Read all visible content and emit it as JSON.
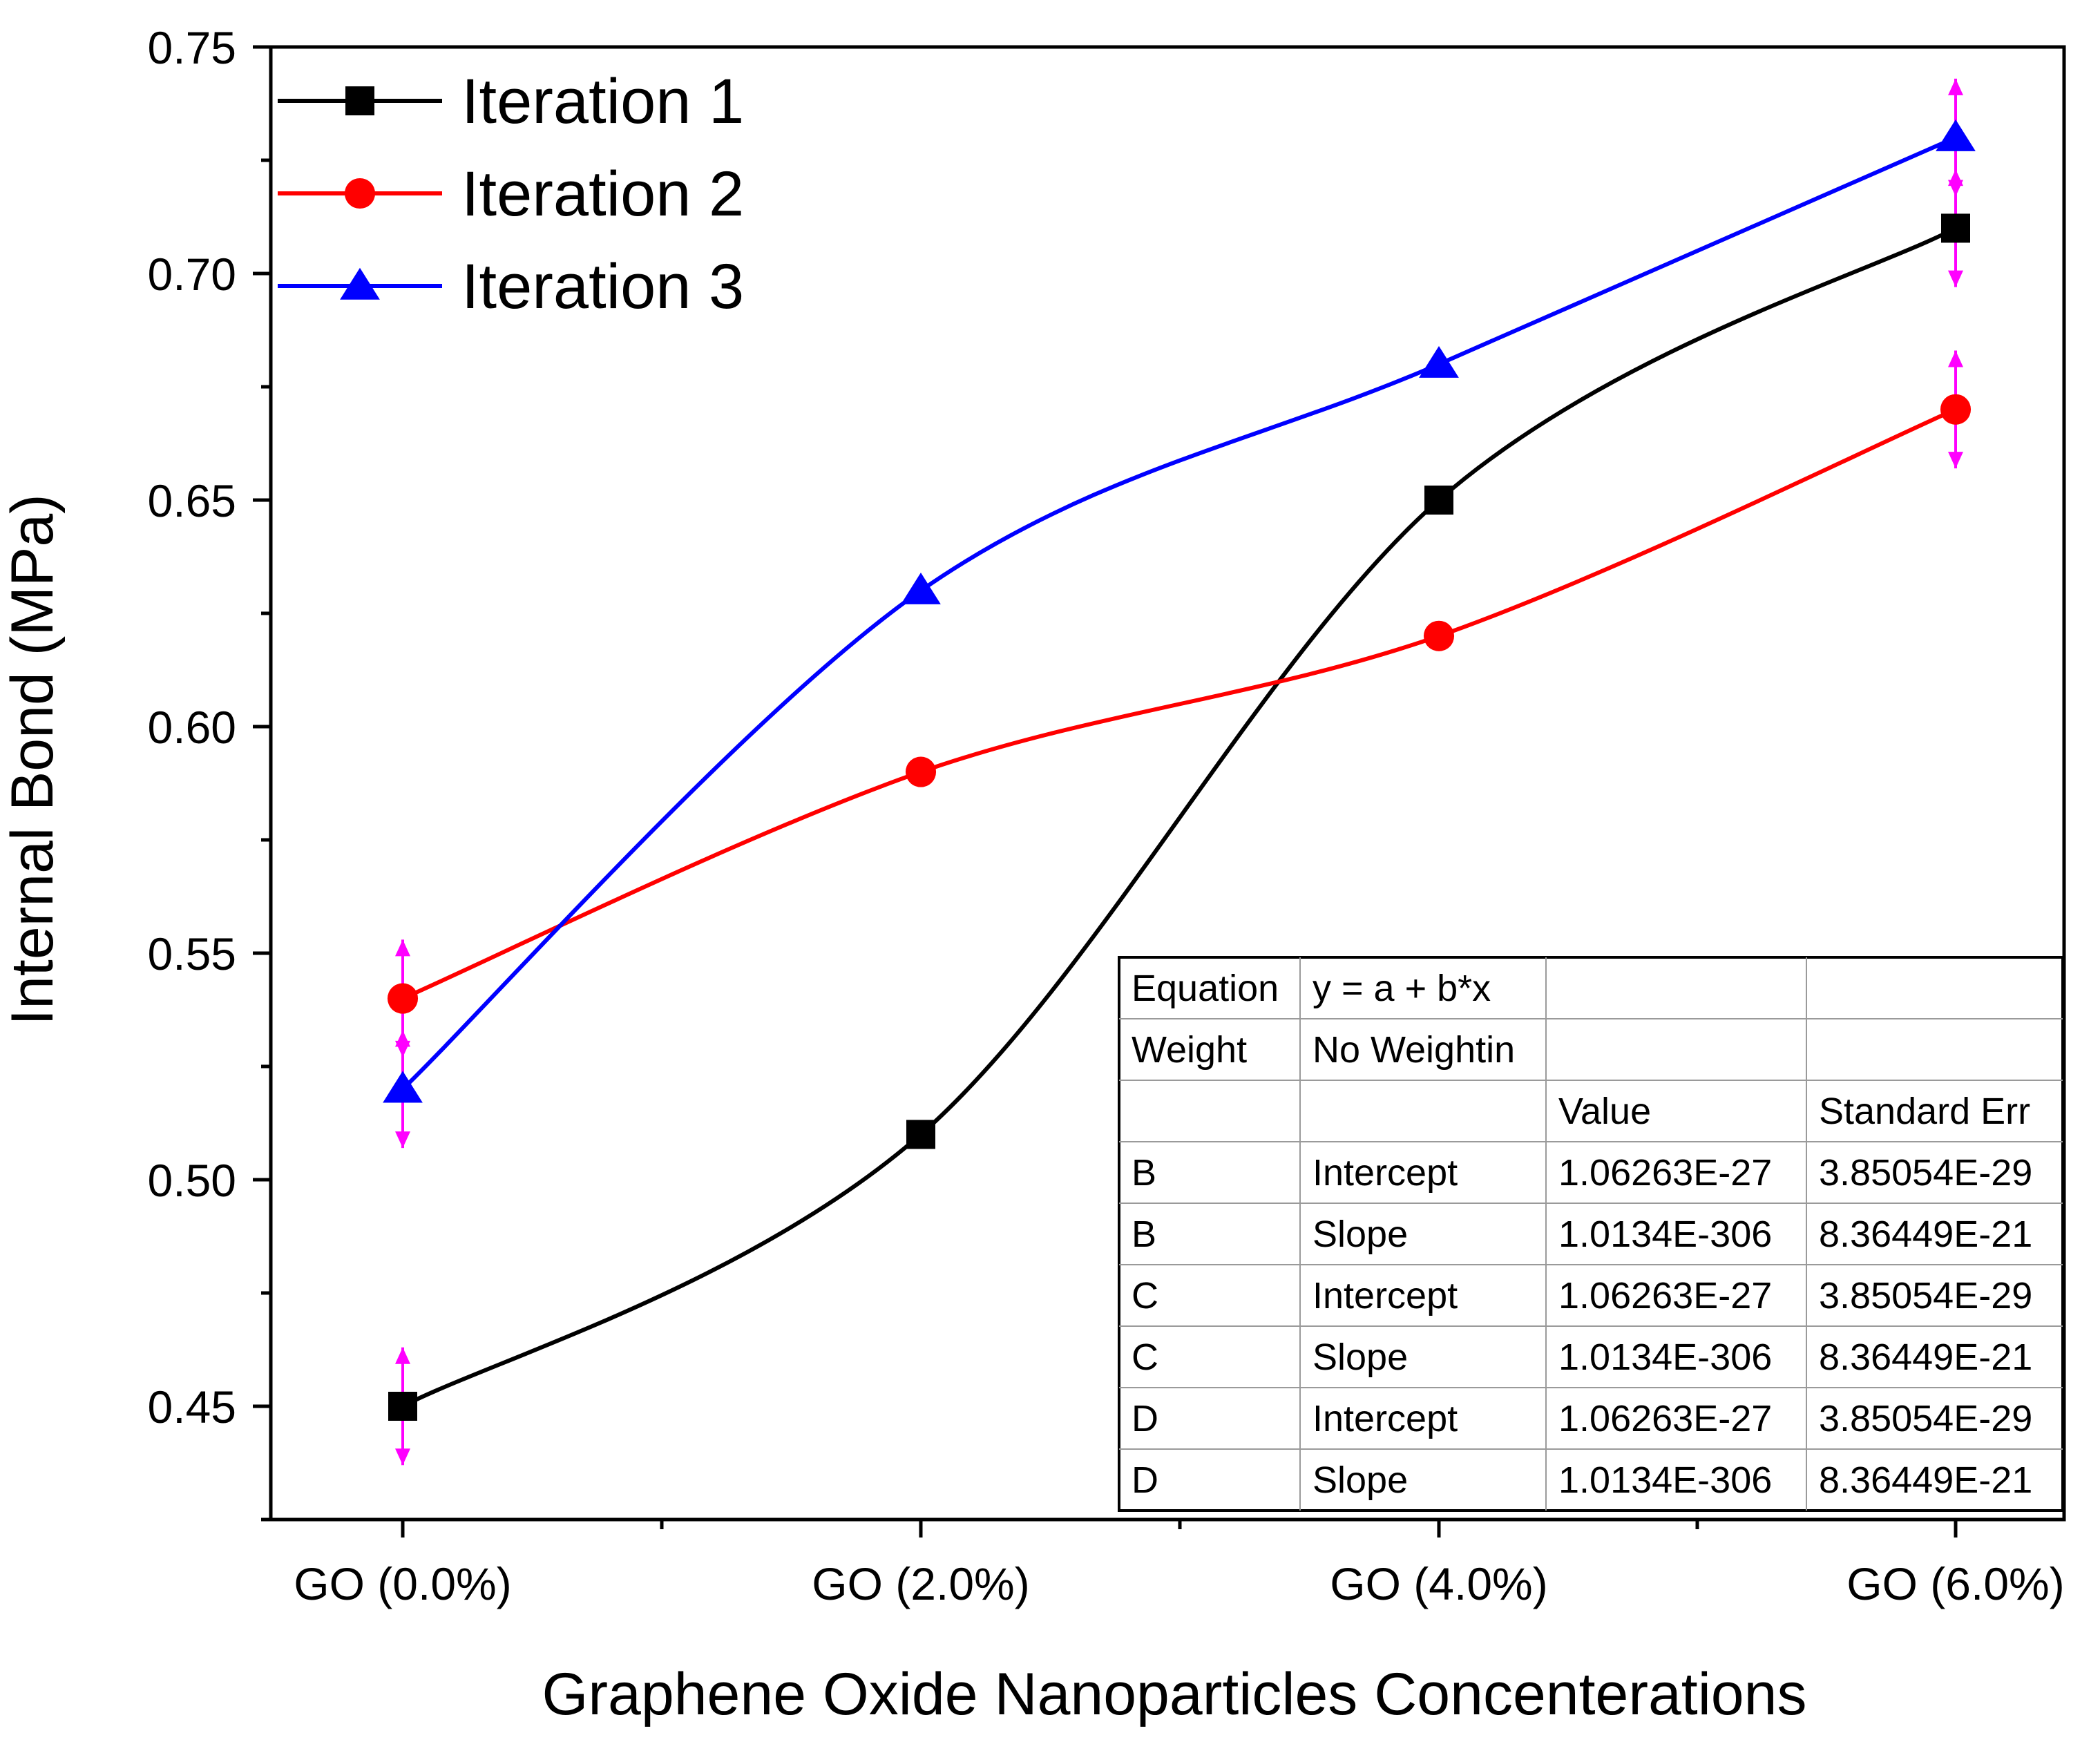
{
  "chart_data": {
    "type": "line",
    "title": "",
    "xlabel": "Graphene Oxide Nanoparticles Concenterations",
    "ylabel": "Internal Bond (MPa)",
    "categories": [
      "GO (0.0%)",
      "GO (2.0%)",
      "GO (4.0%)",
      "GO (6.0%)"
    ],
    "ylim": [
      0.425,
      0.75
    ],
    "yticks": [
      "0.45",
      "0.50",
      "0.55",
      "0.60",
      "0.65",
      "0.70",
      "0.75"
    ],
    "ytick_values": [
      0.45,
      0.5,
      0.55,
      0.6,
      0.65,
      0.7,
      0.75
    ],
    "legend_position": "top-left",
    "series": [
      {
        "name": "Iteration 1",
        "color": "#000000",
        "marker": "square",
        "values": [
          0.45,
          0.51,
          0.65,
          0.71
        ]
      },
      {
        "name": "Iteration 2",
        "color": "#ff0000",
        "marker": "circle",
        "values": [
          0.54,
          0.59,
          0.62,
          0.67
        ]
      },
      {
        "name": "Iteration 3",
        "color": "#0000ff",
        "marker": "triangle",
        "values": [
          0.52,
          0.63,
          0.68,
          0.73
        ]
      }
    ],
    "error_bar_color": "#ff00ff",
    "error_bars": [
      {
        "category": 0,
        "center": 0.45,
        "low": 0.437,
        "high": 0.463
      },
      {
        "category": 0,
        "center": 0.54,
        "low": 0.527,
        "high": 0.553
      },
      {
        "category": 0,
        "center": 0.52,
        "low": 0.507,
        "high": 0.533
      },
      {
        "category": 3,
        "center": 0.73,
        "low": 0.717,
        "high": 0.743
      },
      {
        "category": 3,
        "center": 0.71,
        "low": 0.697,
        "high": 0.723
      },
      {
        "category": 3,
        "center": 0.67,
        "low": 0.657,
        "high": 0.683
      }
    ]
  },
  "fit_table": {
    "rows": [
      [
        "Equation",
        "y = a + b*x",
        "",
        ""
      ],
      [
        "Weight",
        "No Weightin",
        "",
        ""
      ],
      [
        "",
        "",
        "Value",
        "Standard Err"
      ],
      [
        "B",
        "Intercept",
        "1.06263E-27",
        "3.85054E-29"
      ],
      [
        "B",
        "Slope",
        "1.0134E-306",
        "8.36449E-21"
      ],
      [
        "C",
        "Intercept",
        "1.06263E-27",
        "3.85054E-29"
      ],
      [
        "C",
        "Slope",
        "1.0134E-306",
        "8.36449E-21"
      ],
      [
        "D",
        "Intercept",
        "1.06263E-27",
        "3.85054E-29"
      ],
      [
        "D",
        "Slope",
        "1.0134E-306",
        "8.36449E-21"
      ]
    ]
  }
}
